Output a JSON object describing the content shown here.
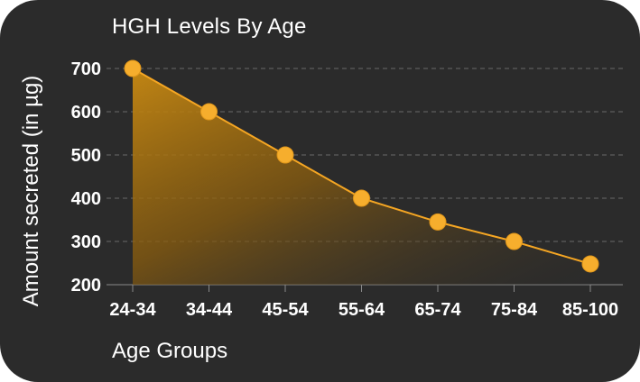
{
  "chart_data": {
    "type": "area",
    "title": "HGH Levels By Age",
    "xlabel": "Age Groups",
    "ylabel": "Amount secreted (in µg)",
    "categories": [
      "24-34",
      "34-44",
      "45-54",
      "55-64",
      "65-74",
      "75-84",
      "85-100"
    ],
    "series": [
      {
        "values": [
          700,
          600,
          500,
          400,
          345,
          300,
          248
        ]
      }
    ],
    "ylim": [
      200,
      700
    ],
    "yticks": [
      200,
      300,
      400,
      500,
      600,
      700
    ],
    "grid": true,
    "colors": {
      "background": "#2b2b2b",
      "line": "#f5a623",
      "marker": "#f6ae2d",
      "grid": "#6a6a6a",
      "text": "#ffffff"
    }
  }
}
